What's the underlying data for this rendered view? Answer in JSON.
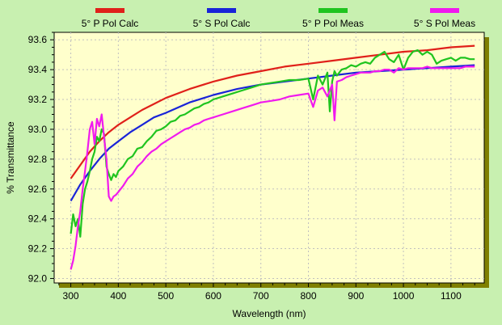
{
  "colors": {
    "background": "#c8f0b0",
    "plot_area": "#ffffcc",
    "frame_shadow": "#7f7f00",
    "grid": "#c0c0c0",
    "text": "#000000"
  },
  "chart_data": {
    "type": "line",
    "title": "",
    "xlabel": "Wavelength (nm)",
    "ylabel": "% Transmittance",
    "xlim": [
      265,
      1170
    ],
    "ylim": [
      91.97,
      93.65
    ],
    "xticks": [
      300,
      400,
      500,
      600,
      700,
      800,
      900,
      1000,
      1100
    ],
    "yticks": [
      92.0,
      92.2,
      92.4,
      92.6,
      92.8,
      93.0,
      93.2,
      93.4,
      93.6
    ],
    "xtick_labels": [
      "300",
      "400",
      "500",
      "600",
      "700",
      "800",
      "900",
      "1000",
      "1100"
    ],
    "ytick_labels": [
      "92.0",
      "92.2",
      "92.4",
      "92.6",
      "92.8",
      "93.0",
      "93.2",
      "93.4",
      "93.6"
    ],
    "grid": "dotted",
    "legend_position": "top",
    "series": [
      {
        "name": "5° P Pol Calc",
        "color": "#e0201a",
        "x": [
          300,
          320,
          340,
          360,
          380,
          400,
          425,
          450,
          475,
          500,
          550,
          600,
          650,
          700,
          750,
          800,
          850,
          900,
          950,
          1000,
          1050,
          1100,
          1150
        ],
        "values": [
          92.67,
          92.76,
          92.85,
          92.92,
          92.98,
          93.03,
          93.08,
          93.13,
          93.17,
          93.21,
          93.27,
          93.32,
          93.36,
          93.39,
          93.42,
          93.44,
          93.46,
          93.48,
          93.5,
          93.52,
          93.53,
          93.55,
          93.56
        ]
      },
      {
        "name": "5° S Pol Calc",
        "color": "#1a24d8",
        "x": [
          300,
          320,
          340,
          360,
          380,
          400,
          425,
          450,
          475,
          500,
          550,
          600,
          650,
          700,
          750,
          800,
          850,
          900,
          950,
          1000,
          1050,
          1100,
          1150
        ],
        "values": [
          92.52,
          92.63,
          92.72,
          92.8,
          92.87,
          92.92,
          92.98,
          93.03,
          93.08,
          93.11,
          93.18,
          93.23,
          93.27,
          93.3,
          93.32,
          93.34,
          93.36,
          93.38,
          93.39,
          93.4,
          93.41,
          93.42,
          93.43
        ]
      },
      {
        "name": "5° P Pol Meas",
        "color": "#1fc41f",
        "x": [
          300,
          305,
          310,
          315,
          320,
          325,
          330,
          335,
          340,
          345,
          350,
          355,
          360,
          365,
          370,
          375,
          380,
          385,
          390,
          395,
          400,
          410,
          420,
          430,
          440,
          450,
          460,
          470,
          480,
          490,
          500,
          510,
          520,
          530,
          540,
          550,
          560,
          570,
          580,
          590,
          600,
          620,
          640,
          660,
          680,
          700,
          720,
          740,
          760,
          780,
          800,
          810,
          820,
          830,
          840,
          845,
          850,
          855,
          860,
          870,
          880,
          890,
          900,
          910,
          920,
          930,
          940,
          950,
          960,
          970,
          980,
          990,
          1000,
          1010,
          1020,
          1030,
          1040,
          1050,
          1060,
          1070,
          1080,
          1090,
          1100,
          1110,
          1120,
          1130,
          1140,
          1150
        ],
        "values": [
          92.3,
          92.43,
          92.35,
          92.4,
          92.28,
          92.5,
          92.6,
          92.65,
          92.72,
          92.8,
          92.85,
          92.95,
          92.92,
          93.0,
          92.97,
          92.75,
          92.7,
          92.66,
          92.7,
          92.68,
          92.72,
          92.75,
          92.8,
          92.82,
          92.87,
          92.88,
          92.92,
          92.95,
          92.99,
          93.0,
          93.02,
          93.05,
          93.06,
          93.09,
          93.1,
          93.12,
          93.14,
          93.15,
          93.17,
          93.18,
          93.2,
          93.22,
          93.24,
          93.26,
          93.28,
          93.3,
          93.31,
          93.32,
          93.33,
          93.33,
          93.34,
          93.2,
          93.36,
          93.3,
          93.38,
          93.12,
          93.32,
          93.39,
          93.36,
          93.4,
          93.41,
          93.43,
          93.42,
          93.44,
          93.45,
          93.44,
          93.48,
          93.5,
          93.52,
          93.47,
          93.45,
          93.5,
          93.4,
          93.48,
          93.52,
          93.53,
          93.5,
          93.52,
          93.5,
          93.44,
          93.46,
          93.47,
          93.48,
          93.46,
          93.48,
          93.48,
          93.47,
          93.47
        ]
      },
      {
        "name": "5° S Pol Meas",
        "color": "#f01aee",
        "x": [
          300,
          305,
          310,
          315,
          320,
          325,
          330,
          335,
          340,
          345,
          350,
          355,
          360,
          365,
          370,
          375,
          380,
          385,
          390,
          395,
          400,
          410,
          420,
          430,
          440,
          450,
          460,
          470,
          480,
          490,
          500,
          510,
          520,
          530,
          540,
          550,
          560,
          570,
          580,
          590,
          600,
          620,
          640,
          660,
          680,
          700,
          720,
          740,
          760,
          780,
          800,
          810,
          820,
          830,
          840,
          850,
          855,
          860,
          870,
          880,
          890,
          900,
          910,
          920,
          930,
          940,
          950,
          960,
          970,
          980,
          990,
          1000,
          1010,
          1020,
          1030,
          1040,
          1050,
          1060,
          1070,
          1080,
          1090,
          1100,
          1110,
          1120,
          1130,
          1140,
          1150
        ],
        "values": [
          92.06,
          92.12,
          92.22,
          92.35,
          92.45,
          92.6,
          92.72,
          92.85,
          93.0,
          93.05,
          92.9,
          93.07,
          93.02,
          93.1,
          92.95,
          92.8,
          92.55,
          92.52,
          92.55,
          92.56,
          92.58,
          92.62,
          92.67,
          92.7,
          92.75,
          92.78,
          92.82,
          92.85,
          92.87,
          92.9,
          92.92,
          92.94,
          92.96,
          92.98,
          93.0,
          93.01,
          93.03,
          93.04,
          93.06,
          93.07,
          93.08,
          93.1,
          93.12,
          93.14,
          93.16,
          93.18,
          93.19,
          93.2,
          93.22,
          93.23,
          93.24,
          93.15,
          93.26,
          93.28,
          93.22,
          93.3,
          93.06,
          93.32,
          93.33,
          93.35,
          93.36,
          93.37,
          93.38,
          93.38,
          93.38,
          93.39,
          93.39,
          93.4,
          93.4,
          93.38,
          93.41,
          93.4,
          93.41,
          93.41,
          93.41,
          93.41,
          93.42,
          93.41,
          93.41,
          93.41,
          93.41,
          93.41,
          93.41,
          93.41,
          93.42,
          93.42,
          93.42
        ]
      }
    ]
  }
}
